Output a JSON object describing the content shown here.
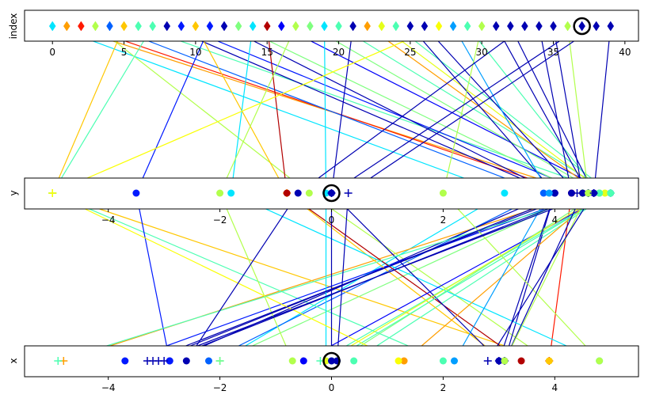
{
  "chart_data": {
    "type": "parallel-coordinates",
    "axes": [
      {
        "name": "index",
        "label": "index",
        "xlim": [
          -1.95,
          40.95
        ],
        "ticks": [
          0,
          5,
          10,
          15,
          20,
          25,
          30,
          35,
          40
        ]
      },
      {
        "name": "y",
        "label": "y",
        "xlim": [
          -5.5,
          5.5
        ],
        "ticks": [
          -4,
          -2,
          0,
          2,
          4
        ]
      },
      {
        "name": "x",
        "label": "x",
        "xlim": [
          -5.5,
          5.5
        ],
        "ticks": [
          -4,
          -2,
          0,
          2,
          4
        ]
      }
    ],
    "colormap": "jet",
    "color_stops": [
      "#00007f",
      "#0000ff",
      "#007fff",
      "#00ffff",
      "#7fff7f",
      "#ffff00",
      "#ff7f00",
      "#ff0000",
      "#7f0000"
    ],
    "grid": false,
    "legend": "none",
    "highlighted_record": 37,
    "records": [
      {
        "index": 0,
        "y": 3.1,
        "x": -2.0,
        "c": 0.35,
        "m": "diamond",
        "my": "circle",
        "mx": "plus"
      },
      {
        "index": 1,
        "y": 4.5,
        "x": -4.8,
        "c": 0.72,
        "m": "diamond",
        "my": "circle",
        "mx": "plus"
      },
      {
        "index": 2,
        "y": 4.3,
        "x": 3.9,
        "c": 0.85,
        "m": "diamond",
        "my": "circle",
        "mx": "plus"
      },
      {
        "index": 3,
        "y": -0.4,
        "x": 3.9,
        "c": 0.55,
        "m": "diamond",
        "my": "circle",
        "mx": "circle"
      },
      {
        "index": 4,
        "y": 3.8,
        "x": -2.2,
        "c": 0.22,
        "m": "diamond",
        "my": "circle",
        "mx": "circle"
      },
      {
        "index": 5,
        "y": -5.0,
        "x": 3.9,
        "c": 0.68,
        "m": "diamond",
        "my": "plus",
        "mx": "circle"
      },
      {
        "index": 6,
        "y": 5.0,
        "x": 0.4,
        "c": 0.45,
        "m": "diamond",
        "my": "plus",
        "mx": "circle"
      },
      {
        "index": 7,
        "y": -5.0,
        "x": 2.0,
        "c": 0.45,
        "m": "diamond",
        "my": "plus",
        "mx": "circle"
      },
      {
        "index": 8,
        "y": 4.0,
        "x": -2.9,
        "c": 0.05,
        "m": "diamond",
        "my": "circle",
        "mx": "circle"
      },
      {
        "index": 9,
        "y": 4.6,
        "x": -3.7,
        "c": 0.15,
        "m": "diamond",
        "my": "circle",
        "mx": "circle"
      },
      {
        "index": 10,
        "y": -0.8,
        "x": 3.1,
        "c": 0.68,
        "m": "diamond",
        "my": "plus",
        "mx": "circle"
      },
      {
        "index": 11,
        "y": -3.5,
        "x": -2.9,
        "c": 0.15,
        "m": "diamond",
        "my": "circle",
        "mx": "circle"
      },
      {
        "index": 12,
        "y": 4.0,
        "x": 3.1,
        "c": 0.05,
        "m": "diamond",
        "my": "circle",
        "mx": "circle"
      },
      {
        "index": 13,
        "y": 4.5,
        "x": -2.0,
        "c": 0.5,
        "m": "diamond",
        "my": "plus",
        "mx": "plus"
      },
      {
        "index": 14,
        "y": -1.8,
        "x": 4.8,
        "c": 0.35,
        "m": "diamond",
        "my": "circle",
        "mx": "circle"
      },
      {
        "index": 15,
        "y": -0.8,
        "x": 3.4,
        "c": 0.95,
        "m": "diamond",
        "my": "circle",
        "mx": "circle"
      },
      {
        "index": 16,
        "y": 5.0,
        "x": -0.5,
        "c": 0.12,
        "m": "diamond",
        "my": "circle",
        "mx": "circle"
      },
      {
        "index": 17,
        "y": -2.0,
        "x": -0.7,
        "c": 0.55,
        "m": "diamond",
        "my": "circle",
        "mx": "circle"
      },
      {
        "index": 18,
        "y": 4.8,
        "x": 0.1,
        "c": 0.5,
        "m": "diamond",
        "my": "circle",
        "mx": "circle"
      },
      {
        "index": 19,
        "y": -0.1,
        "x": -0.1,
        "c": 0.35,
        "m": "diamond",
        "my": "circle",
        "mx": "circle"
      },
      {
        "index": 20,
        "y": 5.0,
        "x": -0.2,
        "c": 0.45,
        "m": "diamond",
        "my": "plus",
        "mx": "plus"
      },
      {
        "index": 21,
        "y": 0.0,
        "x": 3.0,
        "c": 0.05,
        "m": "diamond",
        "my": "circle",
        "mx": "plus"
      },
      {
        "index": 22,
        "y": 4.8,
        "x": 1.3,
        "c": 0.72,
        "m": "diamond",
        "my": "circle",
        "mx": "circle"
      },
      {
        "index": 23,
        "y": 4.9,
        "x": -0.1,
        "c": 0.6,
        "m": "diamond",
        "my": "circle",
        "mx": "circle"
      },
      {
        "index": 24,
        "y": 5.0,
        "x": 0.0,
        "c": 0.45,
        "m": "diamond",
        "my": "circle",
        "mx": "circle"
      },
      {
        "index": 25,
        "y": 4.0,
        "x": 3.0,
        "c": 0.05,
        "m": "diamond",
        "my": "circle",
        "mx": "circle"
      },
      {
        "index": 26,
        "y": 4.4,
        "x": -3.3,
        "c": 0.05,
        "m": "diamond",
        "my": "plus",
        "mx": "plus"
      },
      {
        "index": 27,
        "y": -5.0,
        "x": 1.2,
        "c": 0.62,
        "m": "diamond",
        "my": "plus",
        "mx": "circle"
      },
      {
        "index": 28,
        "y": 3.9,
        "x": 2.2,
        "c": 0.28,
        "m": "diamond",
        "my": "circle",
        "mx": "circle"
      },
      {
        "index": 29,
        "y": 4.8,
        "x": -4.9,
        "c": 0.45,
        "m": "diamond",
        "my": "circle",
        "mx": "plus"
      },
      {
        "index": 30,
        "y": 2.0,
        "x": 4.8,
        "c": 0.55,
        "m": "diamond",
        "my": "circle",
        "mx": "circle"
      },
      {
        "index": 31,
        "y": 4.6,
        "x": -3.0,
        "c": 0.05,
        "m": "diamond",
        "my": "plus",
        "mx": "plus"
      },
      {
        "index": 32,
        "y": 4.7,
        "x": -3.1,
        "c": 0.05,
        "m": "diamond",
        "my": "circle",
        "mx": "plus"
      },
      {
        "index": 33,
        "y": -0.6,
        "x": -2.6,
        "c": 0.05,
        "m": "diamond",
        "my": "circle",
        "mx": "circle"
      },
      {
        "index": 34,
        "y": 4.3,
        "x": -3.2,
        "c": 0.05,
        "m": "diamond",
        "my": "circle",
        "mx": "plus"
      },
      {
        "index": 35,
        "y": 4.5,
        "x": 3.1,
        "c": 0.05,
        "m": "diamond",
        "my": "circle",
        "mx": "plus"
      },
      {
        "index": 36,
        "y": 4.6,
        "x": 3.1,
        "c": 0.55,
        "m": "diamond",
        "my": "circle",
        "mx": "circle"
      },
      {
        "index": 37,
        "y": 0.0,
        "x": 0.0,
        "c": 0.05,
        "m": "diamond",
        "my": "plus",
        "mx": "circle"
      },
      {
        "index": 38,
        "y": 0.3,
        "x": 0.1,
        "c": 0.05,
        "m": "diamond",
        "my": "plus",
        "mx": "circle"
      },
      {
        "index": 39,
        "y": 4.7,
        "x": 2.8,
        "c": 0.05,
        "m": "diamond",
        "my": "plus",
        "mx": "plus"
      }
    ]
  }
}
